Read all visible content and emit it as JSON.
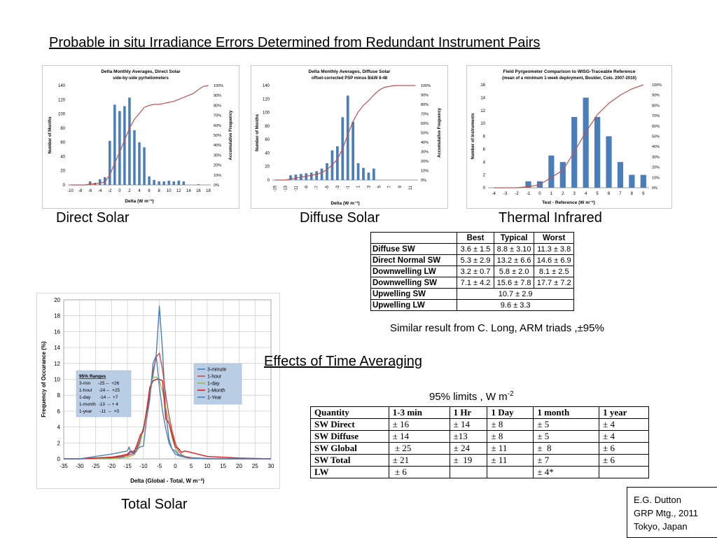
{
  "slide": {
    "title": "Probable in situ Irradiance Errors Determined from Redundant Instrument Pairs",
    "caption_direct": "Direct Solar",
    "caption_diffuse": "Diffuse Solar",
    "caption_thermal": "Thermal Infrared",
    "caption_total": "Total Solar",
    "arm_note": "Similar result from C. Long,  ARM triads ,±95%",
    "section_title": "Effects of Time Averaging",
    "limits_label": "95% limits , W m",
    "limits_sup": "-2",
    "credit": [
      "E.G. Dutton",
      "GRP Mtg., 2011",
      "Tokyo, Japan"
    ]
  },
  "colors": {
    "bar": "#4a7ebb",
    "cdf": "#c0504d",
    "legend_bg": "#b9cde5"
  },
  "chart_data": [
    {
      "type": "bar",
      "id": "direct",
      "title": "Delta Monthly Averages, Direct Solar",
      "subtitle": "side-by-side pyrheliometers",
      "xlabel": "Delta  (W m⁻²)",
      "ylabel": "Number of Months",
      "y2label": "Accumulative Frequency",
      "x": [
        -10,
        -9,
        -8,
        -7,
        -6,
        -5,
        -4,
        -3,
        -2,
        -1,
        0,
        1,
        2,
        3,
        4,
        5,
        6,
        7,
        8,
        9,
        10,
        11,
        12,
        13,
        14,
        15,
        16,
        17,
        18
      ],
      "values": [
        0,
        0,
        0,
        0,
        5,
        3,
        8,
        11,
        62,
        113,
        104,
        111,
        123,
        77,
        60,
        53,
        12,
        7,
        5,
        5,
        6,
        5,
        6,
        5,
        0,
        0,
        1,
        0,
        0
      ],
      "cdf_pct": [
        0,
        0,
        0,
        0,
        1,
        1,
        2,
        3,
        10,
        22,
        33,
        45,
        57,
        66,
        72,
        78,
        80,
        81,
        81,
        82,
        83,
        84,
        86,
        88,
        90,
        92,
        96,
        99,
        100
      ],
      "xticks": [
        -10,
        -8,
        -6,
        -4,
        -2,
        0,
        2,
        4,
        6,
        8,
        10,
        12,
        14,
        16,
        18
      ],
      "ylim": [
        0,
        140
      ],
      "yticks": [
        0,
        20,
        40,
        60,
        80,
        100,
        120,
        140
      ],
      "y2ticks": [
        "0%",
        "10%",
        "20%",
        "30%",
        "40%",
        "50%",
        "60%",
        "70%",
        "80%",
        "90%",
        "100%"
      ]
    },
    {
      "type": "bar",
      "id": "diffuse",
      "title": "Delta Monthly Averages, Diffuse Solar",
      "subtitle": "offset-corrected PSP minus B&W 8-48",
      "xlabel": "Delta  (W m⁻²)",
      "ylabel": "Number of Months",
      "y2label": "Accumulative Frequency",
      "x": [
        -15,
        -14,
        -13,
        -12,
        -11,
        -10,
        -9,
        -8,
        -7,
        -6,
        -5,
        -4,
        -3,
        -2,
        -1,
        0,
        1,
        2,
        3,
        4,
        5,
        6,
        7,
        8,
        9,
        10,
        11,
        12
      ],
      "values": [
        0,
        0,
        0,
        7,
        8,
        9,
        10,
        11,
        13,
        17,
        25,
        44,
        50,
        93,
        125,
        86,
        25,
        18,
        11,
        17,
        0,
        0,
        0,
        0,
        0,
        0,
        0,
        0
      ],
      "cdf_pct": [
        0,
        0,
        0,
        1,
        2,
        3,
        4,
        5,
        6,
        8,
        11,
        16,
        22,
        33,
        48,
        62,
        72,
        79,
        84,
        90,
        95,
        98,
        99,
        100,
        100,
        100,
        100,
        100
      ],
      "xticks": [
        -15,
        -13,
        -11,
        -9,
        -7,
        -5,
        -3,
        -1,
        1,
        3,
        5,
        7,
        9,
        11
      ],
      "ylim": [
        0,
        140
      ],
      "yticks": [
        0,
        20,
        40,
        60,
        80,
        100,
        120,
        140
      ],
      "y2ticks": [
        "0%",
        "10%",
        "20%",
        "30%",
        "40%",
        "50%",
        "60%",
        "70%",
        "80%",
        "90%",
        "100%"
      ]
    },
    {
      "type": "bar",
      "id": "thermal",
      "title": "Field Pyrgeometer Comparison to WISG-Traceable Reference",
      "subtitle": "(mean of a minimum 1-week deployment, Boulder, Colo.  2007-2010)",
      "xlabel": "Test - Reference  (W m⁻²)",
      "ylabel": "Number of Instruments",
      "x": [
        -4,
        -3,
        -2,
        -1,
        0,
        1,
        2,
        3,
        4,
        5,
        6,
        7,
        8,
        9
      ],
      "values": [
        0,
        0,
        0,
        1,
        1,
        5,
        4,
        11,
        14,
        11,
        8,
        4,
        2,
        2
      ],
      "cdf_pct": [
        0,
        0,
        0,
        1,
        3,
        10,
        17,
        35,
        54,
        71,
        82,
        90,
        96,
        100
      ],
      "xticks": [
        -4,
        -3,
        -2,
        -1,
        0,
        1,
        2,
        3,
        4,
        5,
        6,
        7,
        8,
        9
      ],
      "ylim": [
        0,
        16
      ],
      "yticks": [
        0,
        2,
        4,
        6,
        8,
        10,
        12,
        14,
        16
      ],
      "y2ticks": [
        "0%",
        "10%",
        "20%",
        "30%",
        "40%",
        "50%",
        "60%",
        "70%",
        "80%",
        "90%",
        "100%"
      ]
    },
    {
      "type": "line",
      "id": "total",
      "xlabel": "Delta  (Global - Total, W m⁻²)",
      "ylabel": "Frequency of Occurance (%)",
      "xlim": [
        -35,
        30
      ],
      "ylim": [
        0,
        20
      ],
      "xticks": [
        -35,
        -30,
        -25,
        -20,
        -15,
        -10,
        -5,
        0,
        5,
        10,
        15,
        20,
        25,
        30
      ],
      "yticks": [
        0,
        2,
        4,
        6,
        8,
        10,
        12,
        14,
        16,
        18,
        20
      ],
      "ranges_box": {
        "title": "95%  Ranges",
        "rows": [
          "3-min      -25 --  +26",
          "1-hour     -24 --  +25",
          "1-day       -14 --  +7",
          "1-month  -13  -- + 4",
          "1-year      -11  --  +0"
        ]
      },
      "series": [
        {
          "name": "3-minute",
          "color": "#4a7ebb",
          "x": [
            -35,
            -30,
            -25,
            -20,
            -17,
            -16,
            -15,
            -14,
            -13,
            -12,
            -11,
            -10,
            -9,
            -8,
            -7,
            -6,
            -5,
            -4,
            -3,
            -2,
            -1,
            0,
            1,
            2,
            3,
            5,
            10,
            15,
            20,
            30
          ],
          "y": [
            0,
            0,
            0.1,
            0.1,
            0.2,
            0.3,
            0.5,
            0.8,
            1.0,
            1.4,
            2.5,
            4.0,
            5.8,
            8.0,
            10.5,
            13.0,
            19.2,
            13.5,
            6.0,
            2.5,
            1.2,
            0.6,
            0.4,
            0.3,
            0.2,
            0.1,
            0.05,
            0,
            0,
            0
          ]
        },
        {
          "name": "1-hour",
          "color": "#c0504d",
          "x": [
            -35,
            -30,
            -25,
            -20,
            -17,
            -15,
            -13,
            -12,
            -11,
            -10,
            -9,
            -8,
            -7,
            -6,
            -5,
            -4,
            -3,
            -2,
            -1,
            0,
            1,
            2,
            3,
            5,
            10,
            15,
            20,
            30
          ],
          "y": [
            0,
            0,
            0.1,
            0.2,
            0.3,
            0.4,
            0.7,
            1.2,
            2.2,
            3.8,
            6.0,
            8.5,
            11.0,
            12.8,
            13.3,
            11.2,
            8.0,
            5.5,
            3.5,
            2.0,
            1.0,
            0.5,
            0.3,
            0.15,
            0.05,
            0,
            0,
            0
          ]
        },
        {
          "name": "1-day",
          "color": "#9bbb59",
          "x": [
            -35,
            -30,
            -25,
            -20,
            -15,
            -13,
            -12,
            -11,
            -10,
            -9,
            -8,
            -7,
            -6,
            -5,
            -4,
            -3,
            -2,
            -1,
            0,
            1,
            3,
            5,
            10,
            20,
            30
          ],
          "y": [
            0,
            0,
            0,
            0,
            0.2,
            0.5,
            1.0,
            2.0,
            3.8,
            6.2,
            8.8,
            10.2,
            10.3,
            9.8,
            8.5,
            6.5,
            4.5,
            2.6,
            1.4,
            0.6,
            0.2,
            0.05,
            0,
            0,
            0
          ]
        },
        {
          "name": "1-Month",
          "color": "#e41a1c",
          "x": [
            -35,
            -30,
            -25,
            -20,
            -17,
            -15,
            -14,
            -13,
            -12,
            -11,
            -10,
            -9,
            -8,
            -7,
            -6,
            -5,
            -4,
            -3,
            -2,
            -1,
            0,
            1,
            2,
            3,
            5,
            8,
            10,
            15,
            20,
            30
          ],
          "y": [
            0,
            0,
            0.1,
            0.2,
            0.4,
            0.6,
            1.0,
            0.8,
            1.8,
            3.0,
            3.5,
            6.0,
            9.0,
            9.8,
            10.0,
            10.0,
            9.8,
            5.0,
            4.5,
            3.0,
            1.5,
            1.3,
            0.8,
            1.0,
            0.8,
            0.5,
            0.3,
            0.2,
            0.1,
            0
          ]
        },
        {
          "name": "1-Year",
          "color": "#4f81bd",
          "x": [
            -35,
            -30,
            -25,
            -20,
            -15,
            -14.5,
            -14,
            -13,
            -12,
            -11,
            -10,
            -9,
            -8,
            -7,
            -6,
            -5,
            -4,
            -3,
            -2,
            -1,
            0,
            1,
            3,
            5,
            10,
            20,
            30
          ],
          "y": [
            0,
            0,
            0.3,
            0.6,
            1.0,
            1.5,
            0.9,
            0.6,
            1.2,
            1.5,
            1.6,
            5.0,
            7.5,
            12.0,
            13.0,
            9.0,
            6.0,
            3.8,
            2.0,
            1.2,
            1.0,
            0.5,
            0.2,
            0.05,
            0,
            0,
            0
          ]
        }
      ]
    }
  ],
  "errors_table": {
    "headers": [
      "",
      "Best",
      "Typical",
      "Worst"
    ],
    "rows": [
      {
        "label": "Diffuse SW",
        "best": "3.6 ± 1.5",
        "typical": "8.8 ± 3.10",
        "worst": "11.3 ± 3.8"
      },
      {
        "label": "Direct Normal SW",
        "best": "5.3 ± 2.9",
        "typical": "13.2 ± 6.6",
        "worst": "14.6 ± 6.9"
      },
      {
        "label": "Downwelling LW",
        "best": "3.2 ± 0.7",
        "typical": "5.8 ± 2.0",
        "worst": "8.1 ± 2.5"
      },
      {
        "label": "Downwelling SW",
        "best": "7.1 ± 4.2",
        "typical": "15.6 ± 7.8",
        "worst": "17.7 ± 7.2"
      },
      {
        "label": "Upwelling SW",
        "merged": "10.7 ± 2.9"
      },
      {
        "label": "Upwelling LW",
        "merged": "9.6 ± 3.3"
      }
    ]
  },
  "averaging_table": {
    "headers": [
      "Quantity",
      "1-3 min",
      "1 Hr",
      "1 Day",
      "1 month",
      "1 year"
    ],
    "rows": [
      [
        "SW Direct",
        "± 16",
        "± 14",
        "± 8",
        "± 5",
        "± 4"
      ],
      [
        "SW Diffuse",
        "± 14",
        "±13",
        "± 8",
        "± 5",
        "± 4"
      ],
      [
        "SW Global",
        " ± 25",
        "± 24",
        "± 11",
        "±  8",
        "± 6"
      ],
      [
        "SW Total",
        "± 21",
        "±  19",
        "± 11",
        "± 7",
        "± 6"
      ],
      [
        "LW",
        " ± 6",
        "",
        "",
        "± 4*",
        ""
      ]
    ]
  }
}
